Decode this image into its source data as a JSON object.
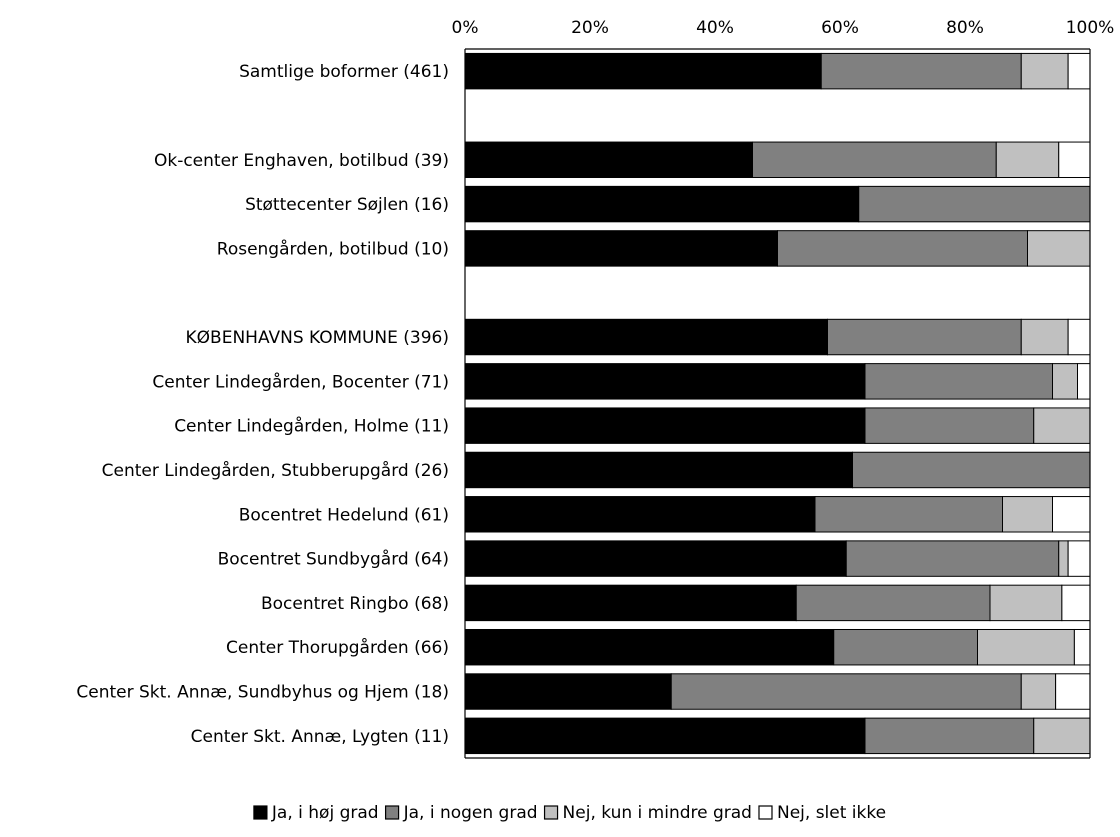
{
  "chart_data": {
    "type": "bar",
    "orientation": "horizontal",
    "stacked": true,
    "title": "",
    "xlabel": "",
    "ylabel": "",
    "xlim": [
      0,
      100
    ],
    "x_ticks": [
      "0%",
      "20%",
      "40%",
      "60%",
      "80%",
      "100%"
    ],
    "x_axis_position": "top",
    "legend_position": "bottom",
    "grid": false,
    "categories": [
      "Samtlige boformer (461)",
      "",
      "Ok-center Enghaven, botilbud (39)",
      "Støttecenter Søjlen (16)",
      "Rosengården, botilbud (10)",
      "",
      "KØBENHAVNS KOMMUNE (396)",
      "Center Lindegården, Bocenter (71)",
      "Center Lindegården, Holme (11)",
      "Center Lindegården, Stubberupgård (26)",
      "Bocentret Hedelund (61)",
      "Bocentret Sundbygård (64)",
      "Bocentret Ringbo (68)",
      "Center Thorupgården (66)",
      "Center Skt. Annæ, Sundbyhus og Hjem (18)",
      "Center Skt. Annæ, Lygten (11)"
    ],
    "series": [
      {
        "name": "Ja, i høj grad",
        "color": "#000000",
        "values": [
          57,
          null,
          46,
          63,
          50,
          null,
          58,
          64,
          64,
          62,
          56,
          61,
          53,
          59,
          33,
          64
        ]
      },
      {
        "name": "Ja, i nogen grad",
        "color": "#808080",
        "values": [
          32,
          null,
          39,
          37,
          40,
          null,
          31,
          30,
          27,
          38,
          30,
          34,
          31,
          23,
          56,
          27
        ]
      },
      {
        "name": "Nej, kun i mindre grad",
        "color": "#c0c0c0",
        "values": [
          7.5,
          null,
          10,
          0,
          10,
          null,
          7.5,
          4,
          9,
          0,
          8,
          1.5,
          11.5,
          15.5,
          5.5,
          9
        ]
      },
      {
        "name": "Nej, slet ikke",
        "color": "#ffffff",
        "values": [
          3.5,
          null,
          5,
          0,
          0,
          null,
          3.5,
          2,
          0,
          0,
          6,
          3.5,
          4.5,
          2.5,
          5.5,
          0
        ]
      }
    ]
  }
}
